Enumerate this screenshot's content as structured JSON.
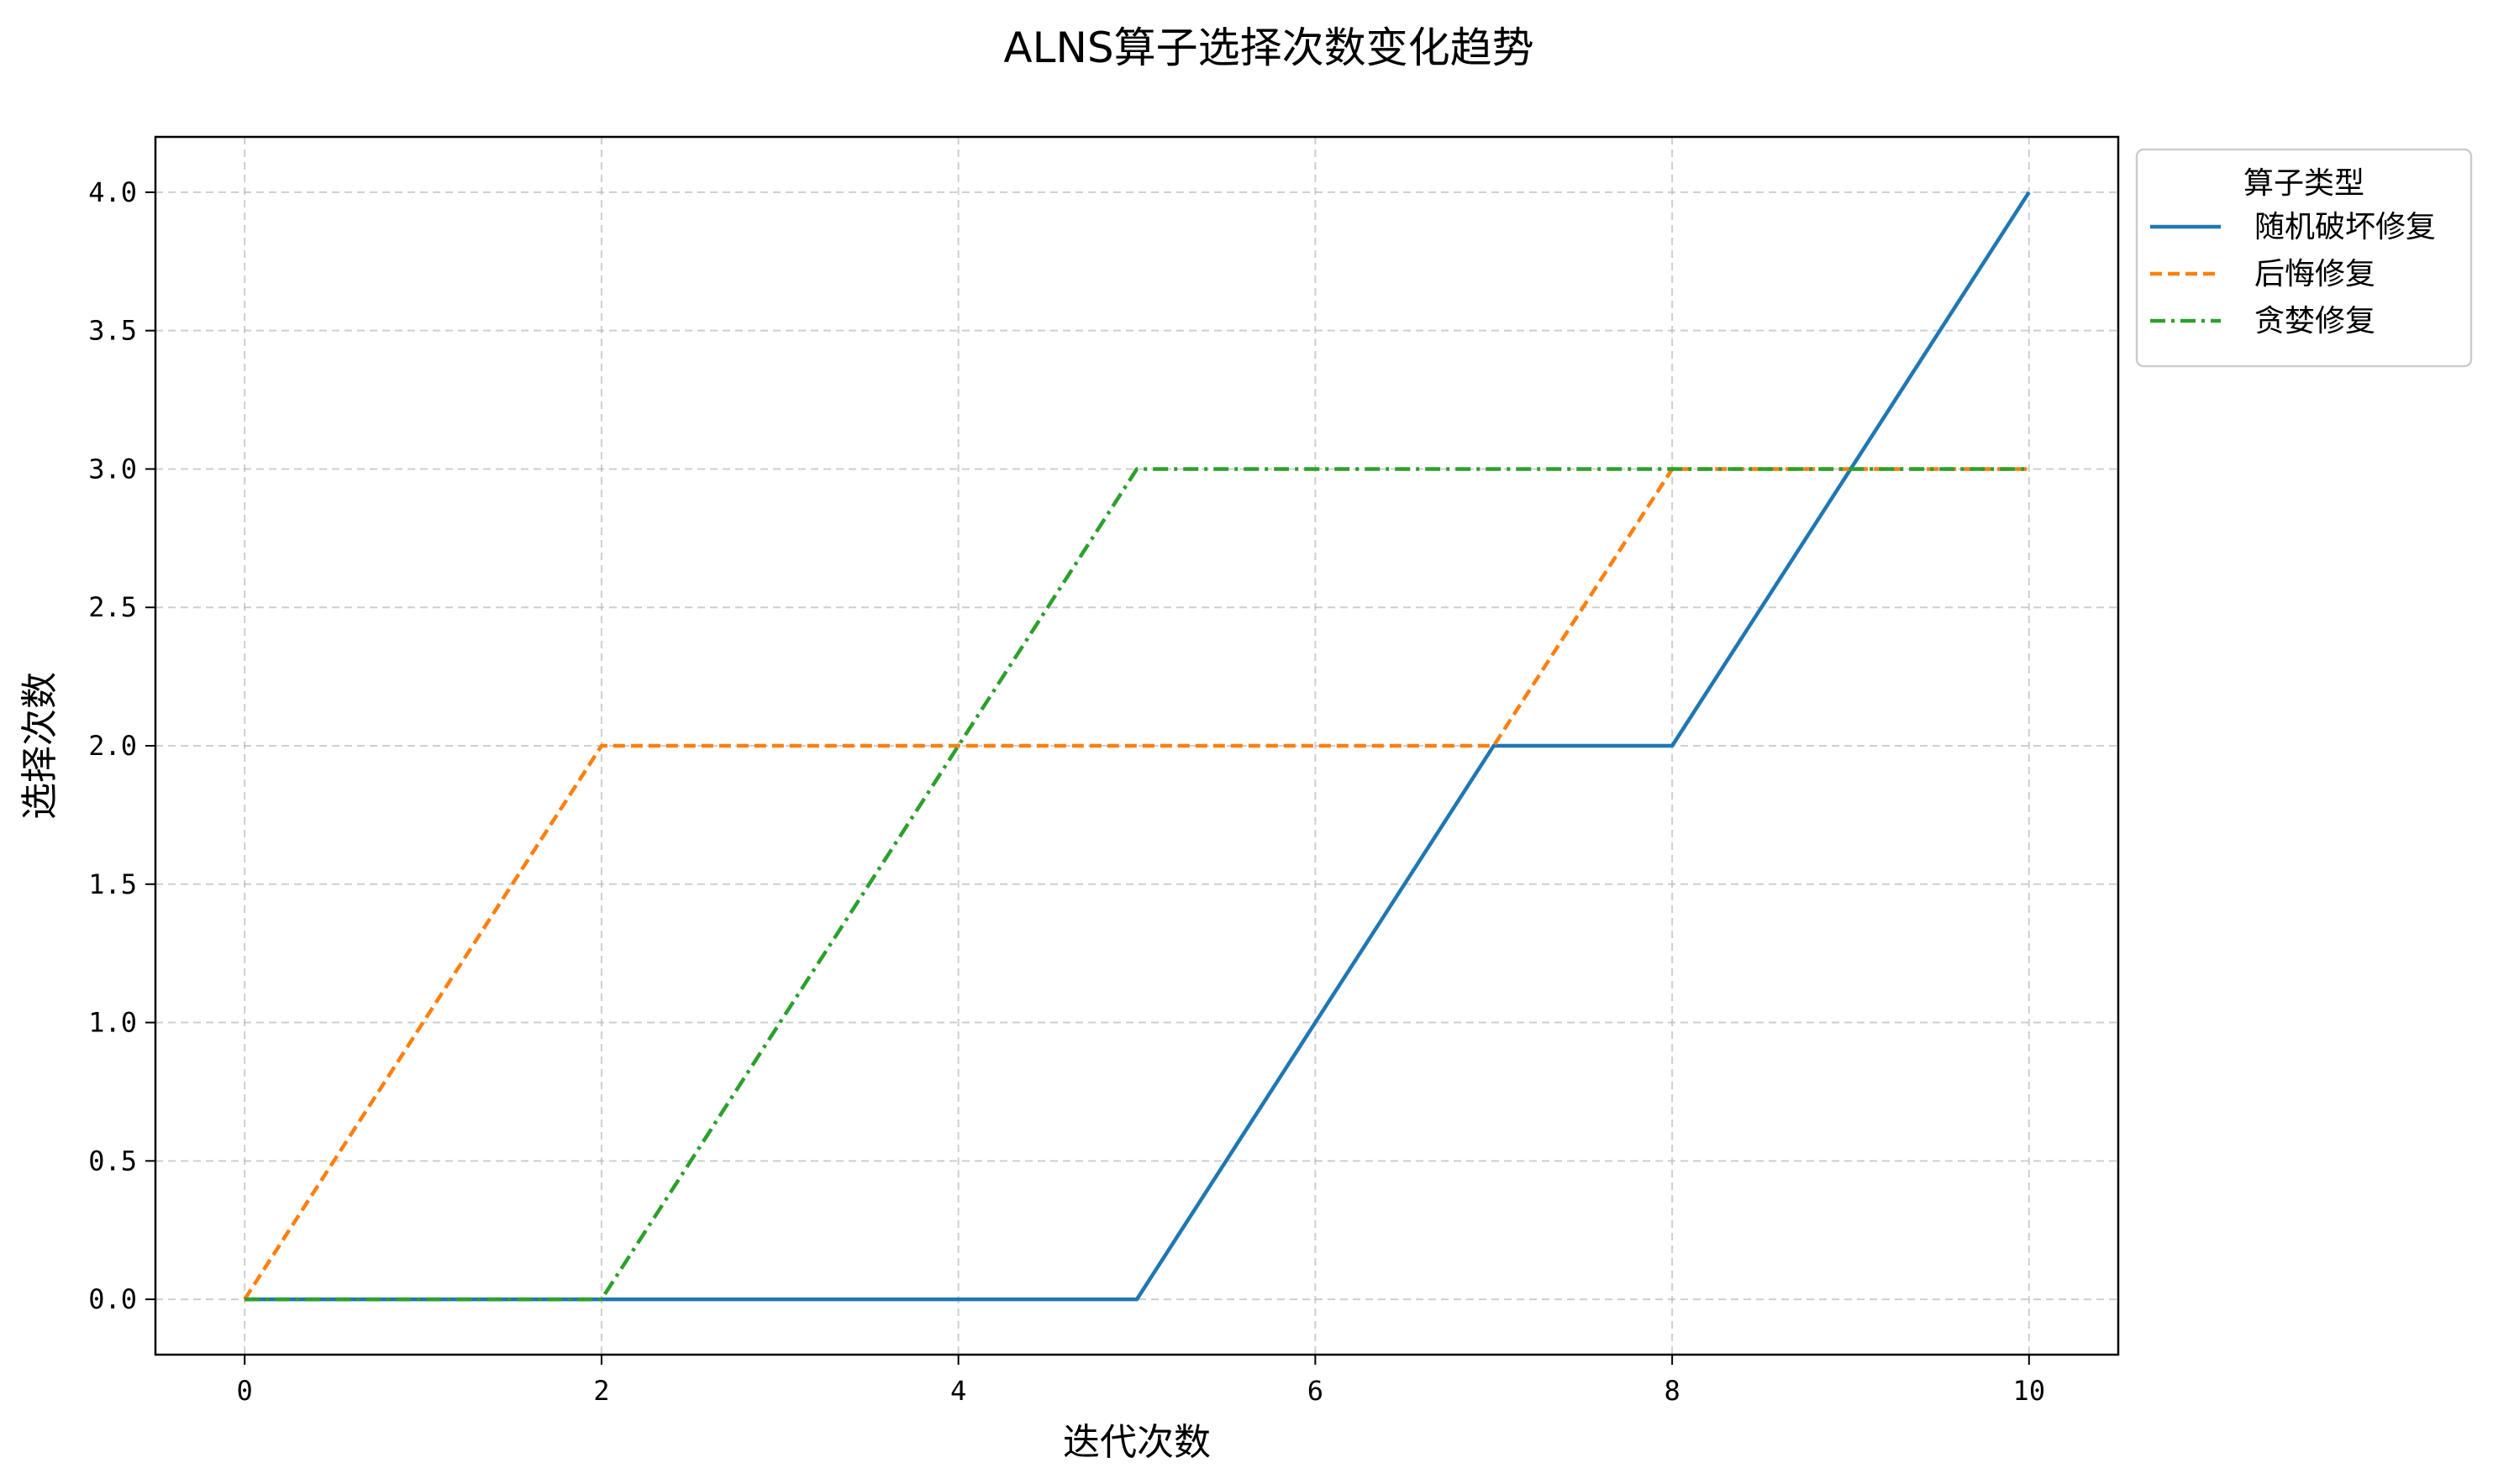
{
  "chart_data": {
    "type": "line",
    "title": "ALNS算子选择次数变化趋势",
    "xlabel": "迭代次数",
    "ylabel": "选择次数",
    "xlim": [
      -0.5,
      10.5
    ],
    "ylim": [
      -0.2,
      4.2
    ],
    "x_ticks": [
      0,
      2,
      4,
      6,
      8,
      10
    ],
    "x_tick_labels": [
      "0",
      "2",
      "4",
      "6",
      "8",
      "10"
    ],
    "y_ticks": [
      0.0,
      0.5,
      1.0,
      1.5,
      2.0,
      2.5,
      3.0,
      3.5,
      4.0
    ],
    "y_tick_labels": [
      "0.0",
      "0.5",
      "1.0",
      "1.5",
      "2.0",
      "2.5",
      "3.0",
      "3.5",
      "4.0"
    ],
    "grid": true,
    "legend": {
      "title": "算子类型",
      "placement": "outside-top-right"
    },
    "x": [
      0,
      1,
      2,
      3,
      4,
      5,
      6,
      7,
      8,
      9,
      10
    ],
    "series": [
      {
        "name": "随机破坏修复",
        "values": [
          0,
          0,
          0,
          0,
          0,
          0,
          1,
          2,
          2,
          3,
          4
        ],
        "color": "#1f77b4",
        "style": "solid"
      },
      {
        "name": "后悔修复",
        "values": [
          0,
          1,
          2,
          2,
          2,
          2,
          2,
          2,
          3,
          3,
          3
        ],
        "color": "#ff7f0e",
        "style": "dashed"
      },
      {
        "name": "贪婪修复",
        "values": [
          0,
          0,
          0,
          1,
          2,
          3,
          3,
          3,
          3,
          3,
          3
        ],
        "color": "#2ca02c",
        "style": "dashdot"
      }
    ]
  }
}
